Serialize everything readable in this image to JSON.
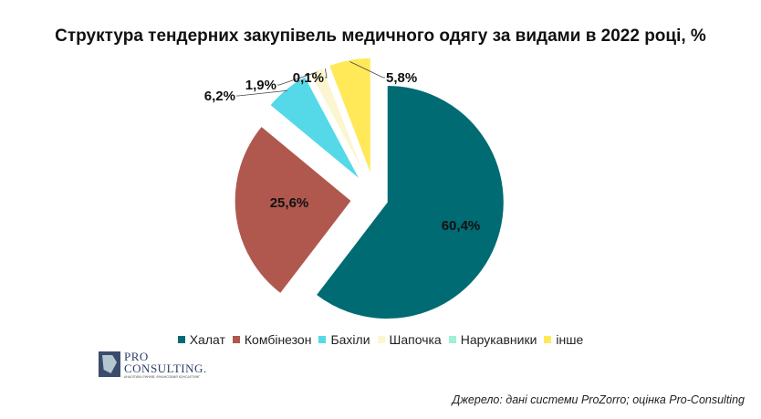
{
  "title": "Структура тендерних закупівель медичного одягу за видами в 2022 році, %",
  "chart_data": {
    "type": "pie",
    "title": "Структура тендерних закупівель медичного одягу за видами в 2022 році, %",
    "legend_position": "bottom",
    "slices": [
      {
        "name": "Халат",
        "value": 60.4,
        "label": "60,4%",
        "color": "#006b73"
      },
      {
        "name": "Комбінезон",
        "value": 25.6,
        "label": "25,6%",
        "color": "#b0584e"
      },
      {
        "name": "Бахіли",
        "value": 6.2,
        "label": "6,2%",
        "color": "#55d9e8"
      },
      {
        "name": "Шапочка",
        "value": 1.9,
        "label": "1,9%",
        "color": "#fbf6cf"
      },
      {
        "name": "Нарукавники",
        "value": 0.1,
        "label": "0,1%",
        "color": "#9ff0d8"
      },
      {
        "name": "інше",
        "value": 5.8,
        "label": "5,8%",
        "color": "#ffe959"
      }
    ]
  },
  "logo": {
    "line1": "PRO",
    "line2": "CONSULTING.",
    "tagline": "АНАЛІТИКА РИНКІВ, ФІНАНСОВИЙ КОНСАЛТИНГ"
  },
  "source": "Джерело: дані системи ProZorro; оцінка Pro-Consulting"
}
